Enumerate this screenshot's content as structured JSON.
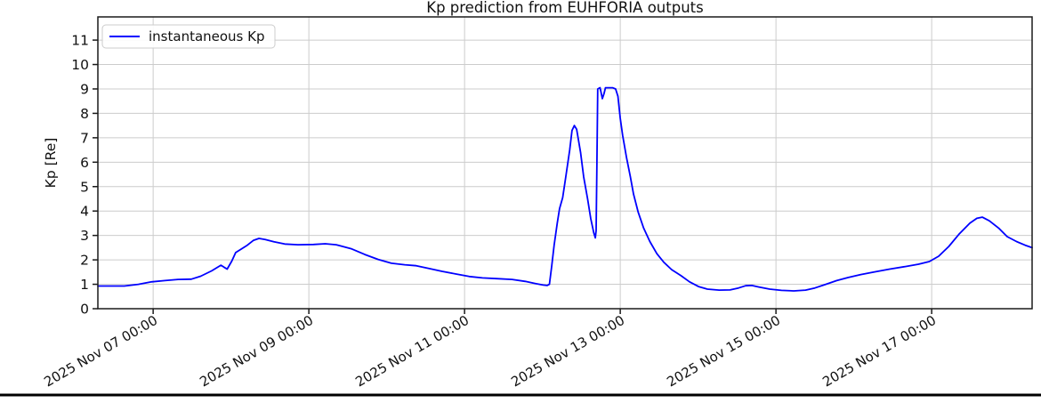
{
  "figure": {
    "title": "Kp prediction from EUHFORIA outputs",
    "ylabel": "Kp [Re]",
    "legend_label": "instantaneous Kp"
  },
  "colors": {
    "line": "#0000ff",
    "grid": "#cccccc",
    "spine": "#1a1a1a",
    "background": "#ffffff",
    "legend_border": "#cccccc",
    "bottom_rule": "#000000"
  },
  "chart_data": {
    "type": "line",
    "title": "Kp prediction from EUHFORIA outputs",
    "xlabel": "",
    "ylabel": "Kp [Re]",
    "grid": true,
    "legend_position": "upper left",
    "x_unit": "days since 2025 Nov 06 00:00",
    "xlim": [
      0.29,
      12.29
    ],
    "ylim": [
      0,
      11.95
    ],
    "y_ticks": [
      0,
      1,
      2,
      3,
      4,
      5,
      6,
      7,
      8,
      9,
      10,
      11
    ],
    "x_ticks": [
      {
        "day": 1,
        "label": "2025 Nov 07 00:00"
      },
      {
        "day": 3,
        "label": "2025 Nov 09 00:00"
      },
      {
        "day": 5,
        "label": "2025 Nov 11 00:00"
      },
      {
        "day": 7,
        "label": "2025 Nov 13 00:00"
      },
      {
        "day": 9,
        "label": "2025 Nov 15 00:00"
      },
      {
        "day": 11,
        "label": "2025 Nov 17 00:00"
      }
    ],
    "series": [
      {
        "name": "instantaneous Kp",
        "color": "#0000ff",
        "points": [
          [
            0.29,
            0.93
          ],
          [
            0.63,
            0.93
          ],
          [
            0.81,
            1.0
          ],
          [
            0.98,
            1.1
          ],
          [
            1.15,
            1.15
          ],
          [
            1.32,
            1.2
          ],
          [
            1.49,
            1.21
          ],
          [
            1.61,
            1.33
          ],
          [
            1.75,
            1.55
          ],
          [
            1.87,
            1.78
          ],
          [
            1.91,
            1.7
          ],
          [
            1.95,
            1.62
          ],
          [
            2.01,
            1.95
          ],
          [
            2.06,
            2.3
          ],
          [
            2.12,
            2.42
          ],
          [
            2.21,
            2.6
          ],
          [
            2.29,
            2.8
          ],
          [
            2.36,
            2.88
          ],
          [
            2.44,
            2.83
          ],
          [
            2.55,
            2.74
          ],
          [
            2.69,
            2.65
          ],
          [
            2.86,
            2.62
          ],
          [
            3.06,
            2.63
          ],
          [
            3.21,
            2.66
          ],
          [
            3.35,
            2.62
          ],
          [
            3.55,
            2.45
          ],
          [
            3.72,
            2.22
          ],
          [
            3.89,
            2.02
          ],
          [
            4.06,
            1.86
          ],
          [
            4.23,
            1.8
          ],
          [
            4.38,
            1.76
          ],
          [
            4.54,
            1.65
          ],
          [
            4.71,
            1.53
          ],
          [
            4.89,
            1.42
          ],
          [
            5.06,
            1.32
          ],
          [
            5.23,
            1.26
          ],
          [
            5.41,
            1.23
          ],
          [
            5.61,
            1.2
          ],
          [
            5.78,
            1.12
          ],
          [
            5.91,
            1.03
          ],
          [
            6.01,
            0.97
          ],
          [
            6.06,
            0.95
          ],
          [
            6.09,
            1.0
          ],
          [
            6.12,
            1.75
          ],
          [
            6.15,
            2.6
          ],
          [
            6.19,
            3.5
          ],
          [
            6.22,
            4.1
          ],
          [
            6.26,
            4.55
          ],
          [
            6.3,
            5.4
          ],
          [
            6.35,
            6.5
          ],
          [
            6.38,
            7.3
          ],
          [
            6.41,
            7.5
          ],
          [
            6.44,
            7.35
          ],
          [
            6.49,
            6.4
          ],
          [
            6.53,
            5.4
          ],
          [
            6.58,
            4.5
          ],
          [
            6.62,
            3.7
          ],
          [
            6.66,
            3.1
          ],
          [
            6.68,
            2.9
          ],
          [
            6.69,
            3.2
          ],
          [
            6.7,
            6.0
          ],
          [
            6.71,
            9.0
          ],
          [
            6.74,
            9.05
          ],
          [
            6.75,
            8.9
          ],
          [
            6.77,
            8.6
          ],
          [
            6.79,
            8.8
          ],
          [
            6.81,
            9.05
          ],
          [
            6.85,
            9.05
          ],
          [
            6.9,
            9.05
          ],
          [
            6.94,
            9.0
          ],
          [
            6.97,
            8.7
          ],
          [
            7.0,
            7.8
          ],
          [
            7.03,
            7.1
          ],
          [
            7.08,
            6.2
          ],
          [
            7.13,
            5.4
          ],
          [
            7.17,
            4.7
          ],
          [
            7.23,
            3.95
          ],
          [
            7.3,
            3.3
          ],
          [
            7.38,
            2.75
          ],
          [
            7.47,
            2.25
          ],
          [
            7.56,
            1.9
          ],
          [
            7.66,
            1.6
          ],
          [
            7.78,
            1.35
          ],
          [
            7.89,
            1.1
          ],
          [
            8.01,
            0.9
          ],
          [
            8.12,
            0.8
          ],
          [
            8.27,
            0.76
          ],
          [
            8.41,
            0.77
          ],
          [
            8.52,
            0.85
          ],
          [
            8.61,
            0.94
          ],
          [
            8.69,
            0.95
          ],
          [
            8.78,
            0.89
          ],
          [
            8.92,
            0.8
          ],
          [
            9.07,
            0.75
          ],
          [
            9.23,
            0.73
          ],
          [
            9.38,
            0.76
          ],
          [
            9.5,
            0.85
          ],
          [
            9.64,
            1.0
          ],
          [
            9.78,
            1.15
          ],
          [
            9.93,
            1.28
          ],
          [
            10.09,
            1.4
          ],
          [
            10.26,
            1.5
          ],
          [
            10.46,
            1.62
          ],
          [
            10.67,
            1.73
          ],
          [
            10.83,
            1.82
          ],
          [
            10.97,
            1.93
          ],
          [
            11.09,
            2.15
          ],
          [
            11.22,
            2.55
          ],
          [
            11.35,
            3.05
          ],
          [
            11.49,
            3.5
          ],
          [
            11.58,
            3.7
          ],
          [
            11.65,
            3.75
          ],
          [
            11.74,
            3.6
          ],
          [
            11.86,
            3.3
          ],
          [
            11.97,
            2.95
          ],
          [
            12.09,
            2.75
          ],
          [
            12.2,
            2.6
          ],
          [
            12.29,
            2.5
          ]
        ]
      }
    ]
  }
}
